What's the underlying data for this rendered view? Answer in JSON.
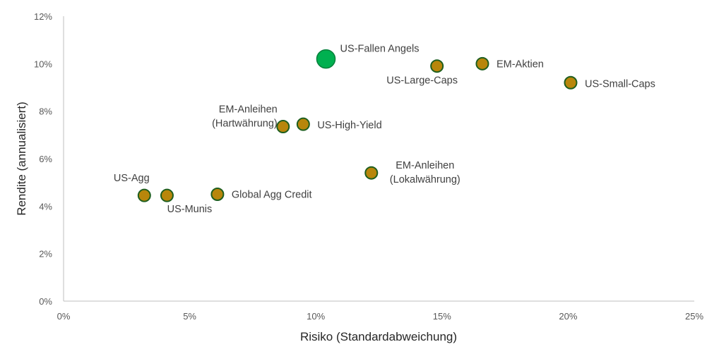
{
  "chart_data": {
    "type": "scatter",
    "xlabel": "Risiko (Standardabweichung)",
    "ylabel": "Rendite (annualisiert)",
    "xlim": [
      0,
      25
    ],
    "ylim": [
      0,
      12
    ],
    "x_ticks": [
      "0%",
      "5%",
      "10%",
      "15%",
      "20%",
      "25%"
    ],
    "y_ticks": [
      "0%",
      "2%",
      "4%",
      "6%",
      "8%",
      "10%",
      "12%"
    ],
    "grid": false,
    "points": [
      {
        "label": "US-Agg",
        "x": 3.2,
        "y": 4.45,
        "highlight": false
      },
      {
        "label": "US-Munis",
        "x": 4.1,
        "y": 4.45,
        "highlight": false
      },
      {
        "label": "Global Agg Credit",
        "x": 6.1,
        "y": 4.5,
        "highlight": false
      },
      {
        "label": "EM-Anleihen (Hartwährung)",
        "lines": [
          "EM-Anleihen",
          "(Hartwährung)"
        ],
        "x": 8.7,
        "y": 7.35,
        "highlight": false
      },
      {
        "label": "US-High-Yield",
        "x": 9.5,
        "y": 7.45,
        "highlight": false
      },
      {
        "label": "US-Fallen Angels",
        "x": 10.4,
        "y": 10.2,
        "highlight": true
      },
      {
        "label": "EM-Anleihen (Lokalwährung)",
        "lines": [
          "EM-Anleihen",
          "(Lokalwährung)"
        ],
        "x": 12.2,
        "y": 5.4,
        "highlight": false
      },
      {
        "label": "US-Large-Caps",
        "x": 14.8,
        "y": 9.9,
        "highlight": false
      },
      {
        "label": "EM-Aktien",
        "x": 16.6,
        "y": 10.0,
        "highlight": false
      },
      {
        "label": "US-Small-Caps",
        "x": 20.1,
        "y": 9.2,
        "highlight": false
      }
    ],
    "colors": {
      "marker_fill": "#B8860B",
      "marker_stroke": "#1E5E1E",
      "highlight_fill": "#00B050",
      "highlight_stroke": "#00803A",
      "axis": "#BFBFBF"
    }
  }
}
